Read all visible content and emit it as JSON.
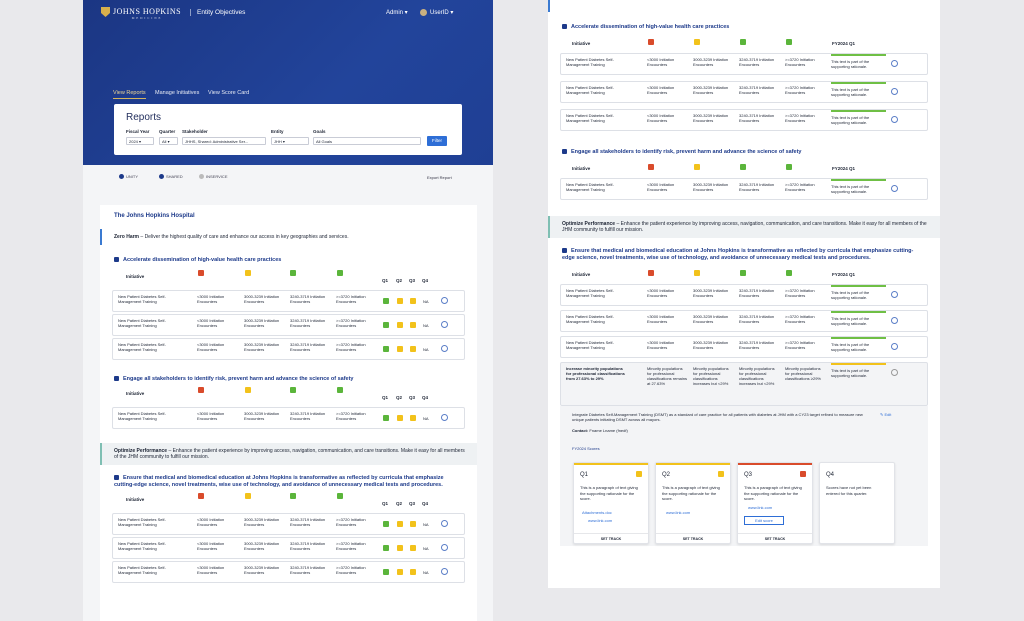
{
  "app": {
    "logo": "JOHNS HOPKINS",
    "logo_sub": "MEDICINE",
    "name": "Entity Objectives",
    "admin": "Admin",
    "user": "UserID"
  },
  "nav": {
    "tabs": [
      "View Reports",
      "Manage Initiatives",
      "View Score Card"
    ]
  },
  "reports": {
    "title": "Reports",
    "labels": [
      "Fiscal Year",
      "Quarter",
      "Stakeholder",
      "Entity",
      "Goals"
    ],
    "values": [
      "2024",
      "All",
      "JHHS, Shared: Administrative Ser...",
      "JHH",
      "All Goals"
    ],
    "filter": "Filter"
  },
  "legend": [
    "UNITY",
    "SHARED",
    "INSERVICE"
  ],
  "export": "Export Report",
  "hospital": "The Johns Hopkins Hospital",
  "zero_harm": {
    "label": "Zero Harm",
    "text": " – Deliver the highest quality of care and enhance our access in key geographies and services."
  },
  "optimize": {
    "label": "Optimize Performance",
    "text": " – Enhance the patient experience by improving access, navigation, communication, and care transitions. Make it easy for all members of the JHM community to fulfill our mission."
  },
  "objectives": [
    "Accelerate dissemination of high-value health care practices",
    "Engage all stakeholders to identify risk, prevent harm and advance the science of safety",
    "Ensure that medical and biomedical education at Johns Hopkins is transformative as reflected by curricula that emphasize cutting-edge science, novel treatments, wise use of technology, and avoidance of unnecessary medical tests and procedures."
  ],
  "table": {
    "initiative": "Initiative",
    "q": [
      "Q1",
      "Q2",
      "Q3",
      "Q4"
    ],
    "fy": "FY2024 Q1",
    "na": "NA"
  },
  "row": {
    "name": "New Patient Diabetes Self-Management Training",
    "c1": "<3000 Initiation Encounters",
    "c2": "3000-3239 Initiation Encounters",
    "c3": "3240-3719 Initiation Encounters",
    "c4": ">=3720 Initiation Encounters",
    "rationale": "This text is part of the supporting rationale."
  },
  "minority": {
    "name": "Increase minority populations for professional classifications from 27.63% to 29%",
    "c1": "Minority populations for professional classifications remains at 27.63%",
    "c2": "Minority populations for professional classifications increases but <29%",
    "c3": "Minority populations for professional classifications increases but <29%",
    "c4": "Minority populations for professional classifications ≥29%",
    "rationale": "This text is part of the supporting rationale."
  },
  "detail": {
    "desc": "Integrate Diabetes Self-Management Training (DSMT) as a standard of care practice for all patients with diabetes at JHM with a CY23 target refined to measure new unique patients initiating DSMT across all mayors.",
    "edit": "Edit",
    "contact_label": "Contact:",
    "contact": "Fname Lname (fnedf)",
    "scores_title": "FY2024 Scores"
  },
  "scores": [
    {
      "q": "Q1",
      "text": "This is a paragraph of text giving the supporting rationale for the score.",
      "link1": "Attachments.doc",
      "link2": "www.link.com",
      "foot": "SET TRACK"
    },
    {
      "q": "Q2",
      "text": "This is a paragraph of text giving the supporting rationale for the score.",
      "link1": "www.link.com",
      "foot": "SET TRACK"
    },
    {
      "q": "Q3",
      "text": "This is a paragraph of text giving the supporting rationale for the score.",
      "link1": "www.link.com",
      "button": "Edit score",
      "foot": "SET TRACK"
    },
    {
      "q": "Q4",
      "text": "Scores have not yet been entered for this quarter."
    }
  ]
}
